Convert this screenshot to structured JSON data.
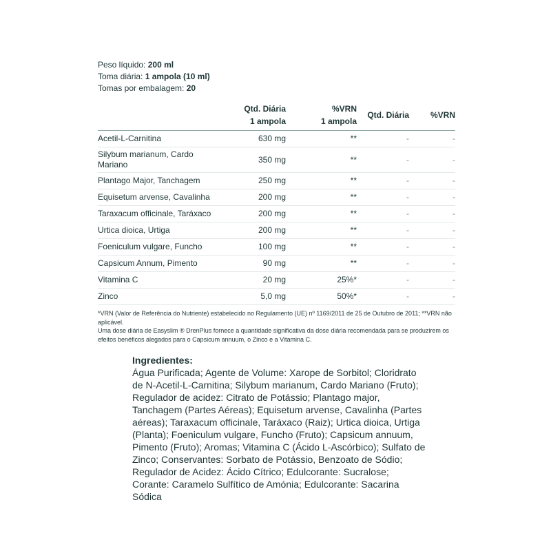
{
  "info": [
    {
      "label": "Peso líquido: ",
      "value": "200 ml"
    },
    {
      "label": "Toma diária: ",
      "value": "1 ampola (10 ml)"
    },
    {
      "label": "Tomas por embalagem: ",
      "value": "20"
    }
  ],
  "table": {
    "headers": [
      {
        "line1": "Qtd. Diária",
        "line2": "1 ampola"
      },
      {
        "line1": "%VRN",
        "line2": "1 ampola"
      },
      {
        "line1": "Qtd. Diária",
        "line2": ""
      },
      {
        "line1": "%VRN",
        "line2": ""
      }
    ],
    "rows": [
      [
        "Acetil-L-Carnitina",
        "630 mg",
        "**",
        "-",
        "-"
      ],
      [
        "Silybum marianum, Cardo Mariano",
        "350 mg",
        "**",
        "-",
        "-"
      ],
      [
        "Plantago Major, Tanchagem",
        "250 mg",
        "**",
        "-",
        "-"
      ],
      [
        "Equisetum arvense, Cavalinha",
        "200 mg",
        "**",
        "-",
        "-"
      ],
      [
        "Taraxacum officinale, Taráxaco",
        "200 mg",
        "**",
        "-",
        "-"
      ],
      [
        "Urtica dioica, Urtiga",
        "200 mg",
        "**",
        "-",
        "-"
      ],
      [
        "Foeniculum vulgare, Funcho",
        "100 mg",
        "**",
        "-",
        "-"
      ],
      [
        "Capsicum Annum, Pimento",
        "90 mg",
        "**",
        "-",
        "-"
      ],
      [
        "Vitamina C",
        "20 mg",
        "25%*",
        "-",
        "-"
      ],
      [
        "Zinco",
        "5,0 mg",
        "50%*",
        "-",
        "-"
      ]
    ]
  },
  "footnotes": [
    "*VRN (Valor de Referência do Nutriente) estabelecido no Regulamento (UE) nº 1169/2011 de 25 de Outubro de 2011; **VRN não aplicável.",
    "Uma dose diária de Easyslim ® DrenPlus fornece a quantidade significativa da dose diária recomendada para se produzirem os efeitos benéficos alegados para o Capsicum annuum, o Zinco e a Vitamina C."
  ],
  "ingredients": {
    "title": "Ingredientes:",
    "text": "Água Purificada; Agente de Volume: Xarope de Sorbitol; Cloridrato de N-Acetil-L-Carnitina; Silybum marianum, Cardo Mariano (Fruto); Regulador de acidez: Citrato de Potássio; Plantago major, Tanchagem (Partes Aéreas); Equisetum arvense, Cavalinha (Partes aéreas); Taraxacum officinale, Taráxaco (Raiz); Urtica dioica, Urtiga (Planta); Foeniculum vulgare, Funcho (Fruto); Capsicum annuum, Pimento (Fruto); Aromas; Vitamina C (Ácido L-Ascórbico); Sulfato de Zinco; Conservantes: Sorbato de Potássio, Benzoato de Sódio; Regulador de Acidez: Ácido Cítrico; Edulcorante: Sucralose; Corante: Caramelo Sulfítico de Amónia; Edulcorante: Sacarina Sódica"
  }
}
